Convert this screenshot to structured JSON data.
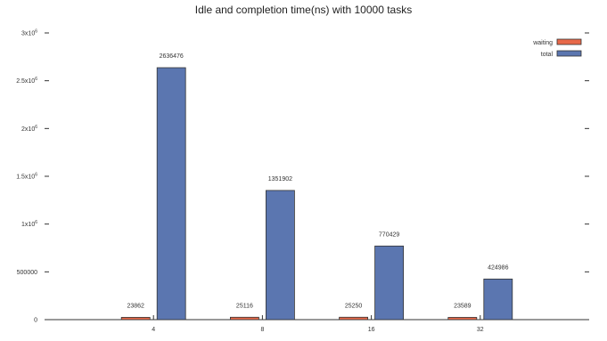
{
  "chart_data": {
    "type": "bar",
    "title": "Idle and completion time(ns) with 10000 tasks",
    "xlabel": "",
    "ylabel": "",
    "categories": [
      "4",
      "8",
      "16",
      "32"
    ],
    "series": [
      {
        "name": "waiting",
        "values": [
          23862,
          25116,
          25250,
          23589
        ],
        "color": "#e8694a"
      },
      {
        "name": "total",
        "values": [
          2636476,
          1351902,
          770429,
          424986
        ],
        "color": "#5b76b0"
      }
    ],
    "data_labels": [
      [
        "23862",
        "25116",
        "25250",
        "23589"
      ],
      [
        "2636476",
        "1351902",
        "770429",
        "424986"
      ]
    ],
    "ylim": [
      0,
      3000000
    ],
    "y_ticks": [
      {
        "value": 0,
        "base": "0",
        "exp": ""
      },
      {
        "value": 500000,
        "base": "500000",
        "exp": ""
      },
      {
        "value": 1000000,
        "base": "1x10",
        "exp": "6"
      },
      {
        "value": 1500000,
        "base": "1.5x10",
        "exp": "6"
      },
      {
        "value": 2000000,
        "base": "2x10",
        "exp": "6"
      },
      {
        "value": 2500000,
        "base": "2.5x10",
        "exp": "6"
      },
      {
        "value": 3000000,
        "base": "3x10",
        "exp": "6"
      }
    ],
    "grid": false,
    "legend_position": "top-right"
  }
}
